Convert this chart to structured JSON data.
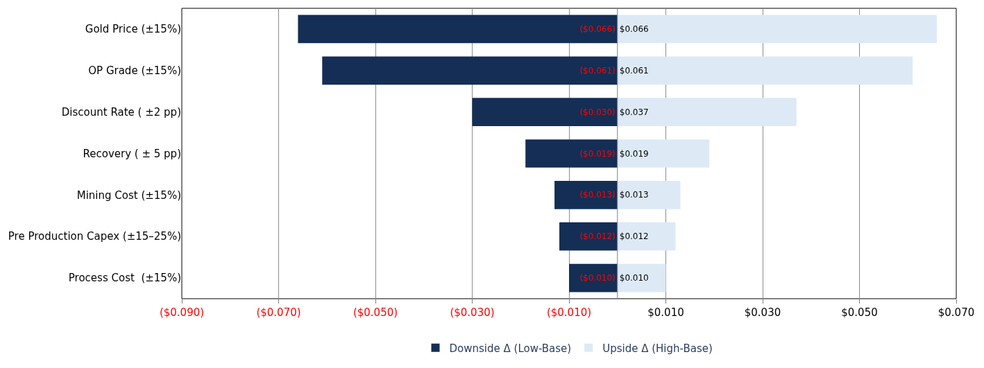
{
  "chart_data": {
    "type": "bar",
    "orientation": "horizontal",
    "stacked": true,
    "categories": [
      "Gold Price (±15%)",
      "OP Grade (±15%)",
      "Discount Rate ( ±2 pp)",
      "Recovery ( ± 5 pp)",
      "Mining Cost (±15%)",
      "Pre Production Capex (±15–25%)",
      "Process Cost  (±15%)"
    ],
    "series": [
      {
        "name": "Downside Δ (Low-Base)",
        "color": "#142e55",
        "values": [
          -0.066,
          -0.061,
          -0.03,
          -0.019,
          -0.013,
          -0.012,
          -0.01
        ],
        "value_labels": [
          "($0.066)",
          "($0.061)",
          "($0.030)",
          "($0.019)",
          "($0.013)",
          "($0.012)",
          "($0.010)"
        ]
      },
      {
        "name": "Upside Δ (High-Base)",
        "color": "#ddeaf6",
        "values": [
          0.066,
          0.061,
          0.037,
          0.019,
          0.013,
          0.012,
          0.01
        ],
        "value_labels": [
          "$0.066",
          "$0.061",
          "$0.037",
          "$0.019",
          "$0.013",
          "$0.012",
          "$0.010"
        ]
      }
    ],
    "xlim": [
      -0.09,
      0.07
    ],
    "xticks": [
      {
        "value": -0.09,
        "label": "($0.090)"
      },
      {
        "value": -0.07,
        "label": "($0.070)"
      },
      {
        "value": -0.05,
        "label": "($0.050)"
      },
      {
        "value": -0.03,
        "label": "($0.030)"
      },
      {
        "value": -0.01,
        "label": "($0.010)"
      },
      {
        "value": 0.01,
        "label": "$0.010"
      },
      {
        "value": 0.03,
        "label": "$0.030"
      },
      {
        "value": 0.05,
        "label": "$0.050"
      },
      {
        "value": 0.07,
        "label": "$0.070"
      }
    ],
    "grid": "x",
    "legend": "bottom"
  }
}
